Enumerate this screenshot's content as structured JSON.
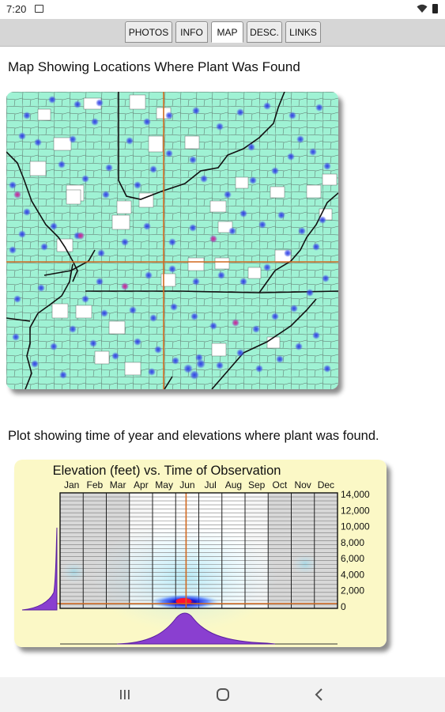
{
  "status_bar": {
    "time": "7:20"
  },
  "tabs": [
    {
      "label": "PHOTOS",
      "active": false
    },
    {
      "label": "INFO",
      "active": false
    },
    {
      "label": "MAP",
      "active": true
    },
    {
      "label": "DESC.",
      "active": false
    },
    {
      "label": "LINKS",
      "active": false
    }
  ],
  "map_section": {
    "heading": "Map Showing Locations Where Plant Was Found"
  },
  "plot_section": {
    "heading": "Plot showing time of year and elevations where plant was found.",
    "plot_title": "Elevation (feet) vs. Time of Observation",
    "months": [
      "Jan",
      "Feb",
      "Mar",
      "Apr",
      "May",
      "Jun",
      "Jul",
      "Aug",
      "Sep",
      "Oct",
      "Nov",
      "Dec"
    ],
    "elevation_labels": [
      "14,000",
      "12,000",
      "10,000",
      "8,000",
      "6,000",
      "4,000",
      "2,000",
      "0"
    ]
  },
  "colors": {
    "land": "#9ff2d4",
    "county_outline": "#444444",
    "dot_blue": "#3d4fe8",
    "dot_magenta": "#d0208c",
    "crosshair": "#d2691e",
    "plot_background": "#fbf8c6",
    "density_purple": "#8a3fd0"
  }
}
